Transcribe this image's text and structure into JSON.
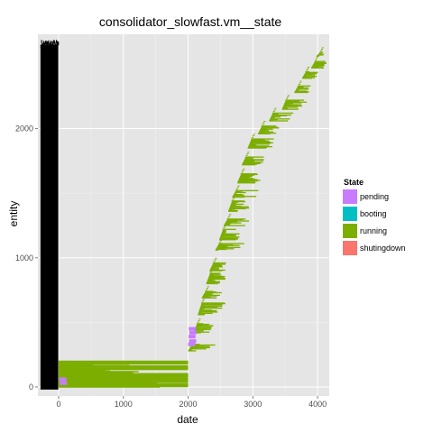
{
  "chart_data": {
    "type": "bar",
    "title": "consolidator_slowfast.vm__state",
    "xlabel": "date",
    "ylabel": "entity",
    "x_ticks": [
      0,
      1000,
      2000,
      3000,
      4000
    ],
    "y_ticks": [
      0,
      1000,
      2000
    ],
    "xlim": [
      -320,
      4180
    ],
    "ylim": [
      -70,
      2730
    ],
    "grid": true,
    "legend": {
      "title": "State",
      "position": "right",
      "entries": [
        {
          "label": "pending",
          "color": "#C77CFF"
        },
        {
          "label": "booting",
          "color": "#00BFC4"
        },
        {
          "label": "running",
          "color": "#7CAE00"
        },
        {
          "label": "shutingdown",
          "color": "#F8766D"
        }
      ]
    },
    "background_block": {
      "x_start": -280,
      "x_end": -5,
      "y_start": -20,
      "y_end": 2650,
      "color": "#000000"
    },
    "running_block_low": {
      "x_start": 0,
      "x_end": 2000,
      "y_start": 0,
      "y_end": 200
    },
    "pending_points": [
      {
        "x": 2010,
        "y": 450
      },
      {
        "x": 2020,
        "y": 420
      },
      {
        "x": 2005,
        "y": 390
      },
      {
        "x": 2015,
        "y": 355
      },
      {
        "x": 2000,
        "y": 330
      },
      {
        "x": 10,
        "y": 60
      },
      {
        "x": 20,
        "y": 30
      }
    ],
    "running_clusters": [
      {
        "x_start": 2000,
        "y_start": 280,
        "y_end": 330,
        "max_len": 380
      },
      {
        "x_start": 2080,
        "y_start": 420,
        "y_end": 490,
        "max_len": 240
      },
      {
        "x_start": 2150,
        "y_start": 560,
        "y_end": 650,
        "max_len": 340
      },
      {
        "x_start": 2210,
        "y_start": 690,
        "y_end": 740,
        "max_len": 260
      },
      {
        "x_start": 2280,
        "y_start": 800,
        "y_end": 880,
        "max_len": 240
      },
      {
        "x_start": 2330,
        "y_start": 900,
        "y_end": 960,
        "max_len": 220
      },
      {
        "x_start": 2420,
        "y_start": 1060,
        "y_end": 1110,
        "max_len": 460
      },
      {
        "x_start": 2480,
        "y_start": 1140,
        "y_end": 1220,
        "max_len": 280
      },
      {
        "x_start": 2550,
        "y_start": 1250,
        "y_end": 1300,
        "max_len": 320
      },
      {
        "x_start": 2620,
        "y_start": 1360,
        "y_end": 1440,
        "max_len": 280
      },
      {
        "x_start": 2680,
        "y_start": 1470,
        "y_end": 1520,
        "max_len": 340
      },
      {
        "x_start": 2760,
        "y_start": 1580,
        "y_end": 1650,
        "max_len": 320
      },
      {
        "x_start": 2830,
        "y_start": 1720,
        "y_end": 1780,
        "max_len": 280
      },
      {
        "x_start": 2920,
        "y_start": 1850,
        "y_end": 1920,
        "max_len": 360
      },
      {
        "x_start": 3080,
        "y_start": 1960,
        "y_end": 2020,
        "max_len": 280
      },
      {
        "x_start": 3250,
        "y_start": 2060,
        "y_end": 2120,
        "max_len": 300
      },
      {
        "x_start": 3450,
        "y_start": 2150,
        "y_end": 2220,
        "max_len": 320
      },
      {
        "x_start": 3640,
        "y_start": 2280,
        "y_end": 2330,
        "max_len": 260
      },
      {
        "x_start": 3760,
        "y_start": 2390,
        "y_end": 2440,
        "max_len": 200
      },
      {
        "x_start": 3900,
        "y_start": 2470,
        "y_end": 2520,
        "max_len": 180
      },
      {
        "x_start": 3980,
        "y_start": 2560,
        "y_end": 2590,
        "max_len": 60
      }
    ]
  }
}
